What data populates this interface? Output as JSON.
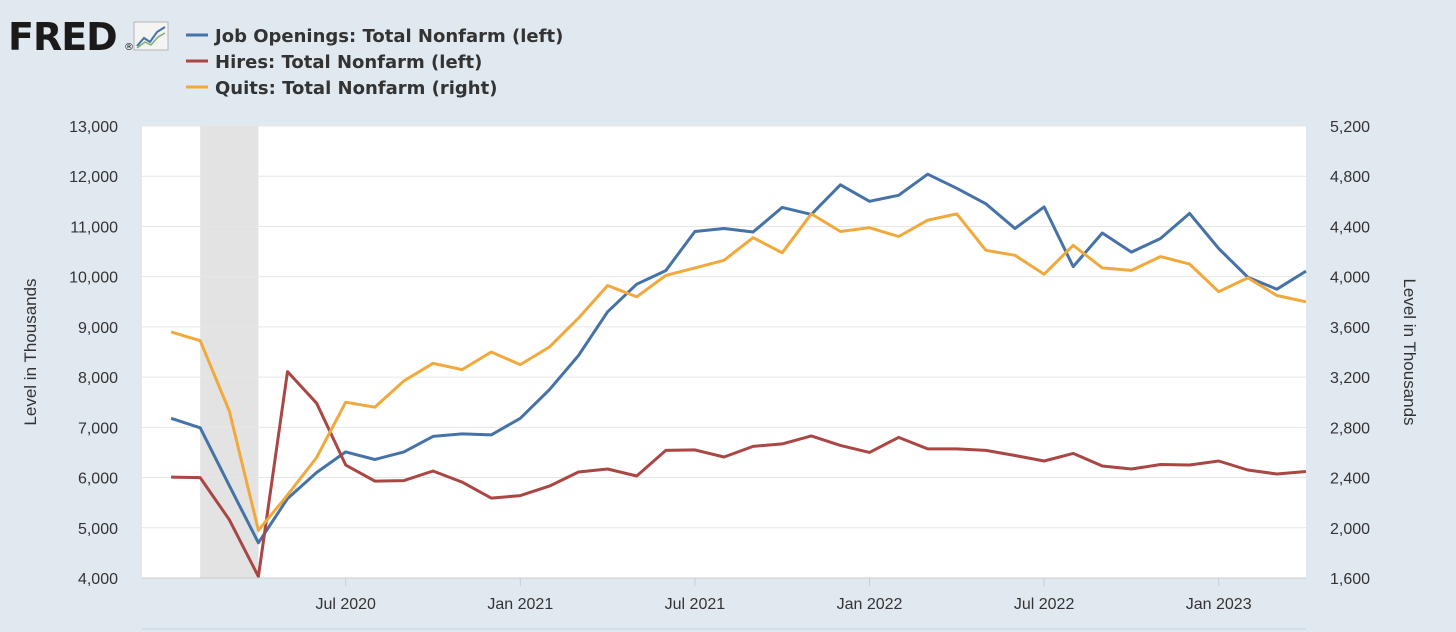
{
  "logo": {
    "text": "FRED",
    "registered": "®",
    "icon": "line-chart-icon"
  },
  "colors": {
    "background": "#e1e9f0",
    "plot_bg": "#ffffff",
    "grid": "#e6e6e6",
    "recession": "#e3e3e3",
    "job_openings": "#4572a7",
    "hires": "#aa4643",
    "quits": "#f2a93b"
  },
  "chart_data": {
    "type": "line",
    "legend": {
      "position": "top-left",
      "items": [
        "Job Openings: Total Nonfarm (left)",
        "Hires: Total Nonfarm (left)",
        "Quits: Total Nonfarm (right)"
      ]
    },
    "y_left": {
      "label": "Level in Thousands",
      "range": [
        4000,
        13000
      ],
      "ticks": [
        4000,
        5000,
        6000,
        7000,
        8000,
        9000,
        10000,
        11000,
        12000,
        13000
      ],
      "tick_labels": [
        "4,000",
        "5,000",
        "6,000",
        "7,000",
        "8,000",
        "9,000",
        "10,000",
        "11,000",
        "12,000",
        "13,000"
      ]
    },
    "y_right": {
      "label": "Level in Thousands",
      "range": [
        1600,
        5200
      ],
      "ticks": [
        1600,
        2000,
        2400,
        2800,
        3200,
        3600,
        4000,
        4400,
        4800,
        5200
      ],
      "tick_labels": [
        "1,600",
        "2,000",
        "2,400",
        "2,800",
        "3,200",
        "3,600",
        "4,000",
        "4,400",
        "4,800",
        "5,200"
      ]
    },
    "x": {
      "start": "2020-01",
      "end": "2023-04",
      "range": [
        "2019-12",
        "2023-04"
      ],
      "tick_labels": [
        "Jul 2020",
        "Jan 2021",
        "Jul 2021",
        "Jan 2022",
        "Jul 2022",
        "Jan 2023"
      ],
      "tick_dates": [
        "2020-07",
        "2021-01",
        "2021-07",
        "2022-01",
        "2022-07",
        "2023-01"
      ]
    },
    "recession": {
      "start": "2020-02",
      "end": "2020-04"
    },
    "grid": true,
    "series": [
      {
        "name": "Job Openings: Total Nonfarm (left)",
        "axis": "left",
        "values": [
          7180,
          6990,
          5840,
          4700,
          5580,
          6100,
          6510,
          6360,
          6510,
          6820,
          6870,
          6850,
          7180,
          7750,
          8430,
          9300,
          9850,
          10120,
          10900,
          10960,
          10890,
          11380,
          11240,
          11830,
          11500,
          11620,
          12040,
          11760,
          11450,
          10960,
          11390,
          10200,
          10870,
          10490,
          10760,
          11260,
          10560,
          9990,
          9750,
          10110
        ]
      },
      {
        "name": "Hires: Total Nonfarm (left)",
        "axis": "left",
        "values": [
          6010,
          6000,
          5160,
          4030,
          8110,
          7480,
          6250,
          5930,
          5940,
          6130,
          5910,
          5590,
          5640,
          5830,
          6110,
          6170,
          6030,
          6540,
          6550,
          6410,
          6620,
          6670,
          6830,
          6640,
          6500,
          6800,
          6570,
          6570,
          6540,
          6440,
          6330,
          6480,
          6230,
          6170,
          6260,
          6250,
          6330,
          6150,
          6070,
          6120
        ]
      },
      {
        "name": "Quits: Total Nonfarm (right)",
        "axis": "right",
        "values": [
          3560,
          3490,
          2930,
          1980,
          2260,
          2560,
          3000,
          2960,
          3170,
          3310,
          3260,
          3400,
          3300,
          3440,
          3670,
          3930,
          3840,
          4010,
          4070,
          4130,
          4310,
          4190,
          4500,
          4360,
          4390,
          4320,
          4450,
          4500,
          4210,
          4170,
          4020,
          4250,
          4070,
          4050,
          4160,
          4100,
          3880,
          3990,
          3850,
          3800
        ]
      }
    ]
  }
}
